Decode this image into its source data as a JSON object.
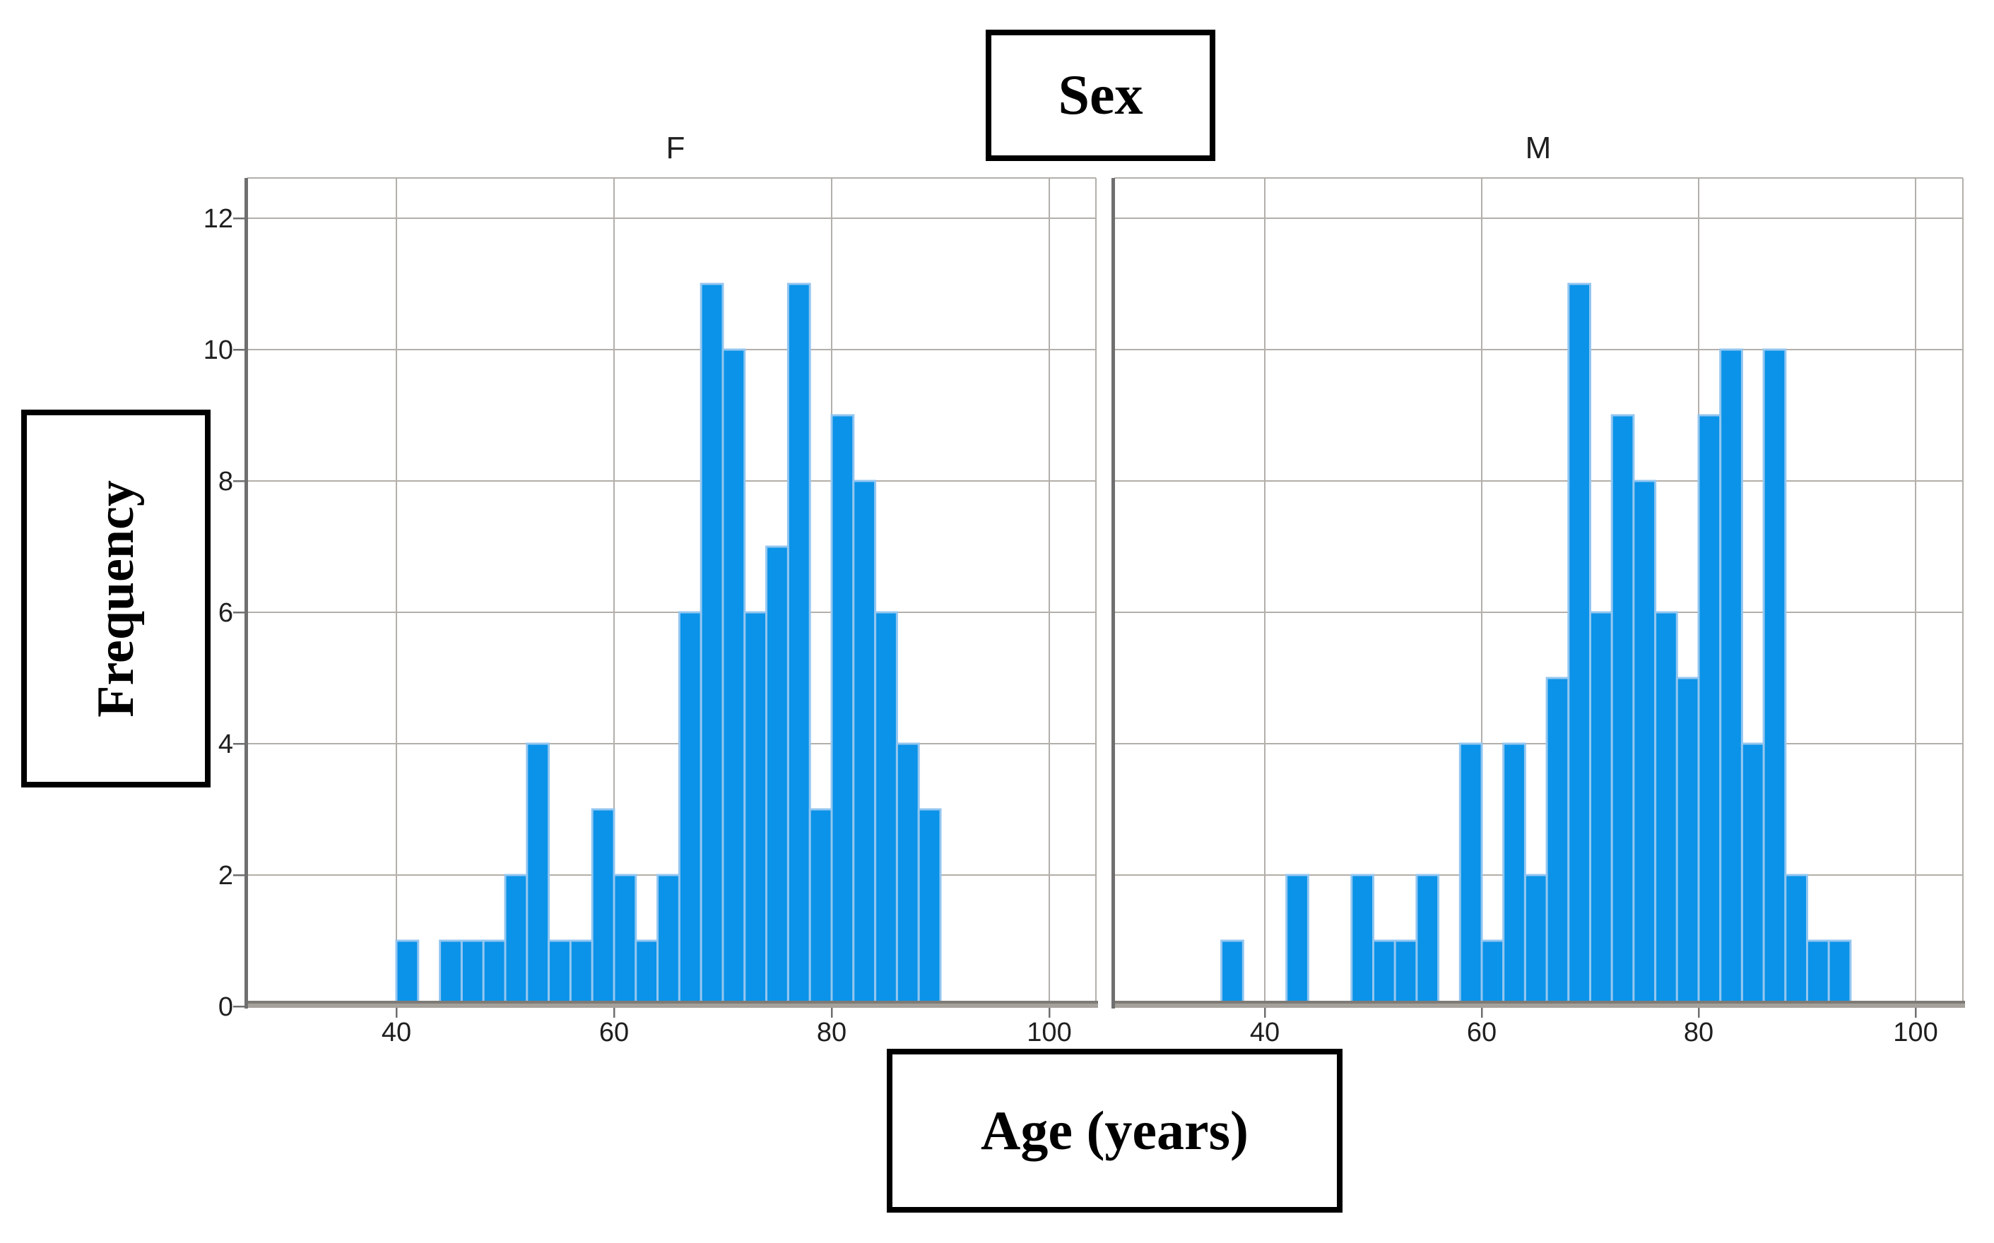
{
  "figure_title": "Sex",
  "chart_data": {
    "type": "bar",
    "subtype": "histogram-faceted",
    "title": "Sex",
    "xlabel": "Age (years)",
    "ylabel": "Frequency",
    "bin_width_years": 2,
    "x_ticks": [
      40,
      60,
      80,
      100
    ],
    "y_ticks": [
      0,
      2,
      4,
      6,
      8,
      10,
      12
    ],
    "ylim": [
      0,
      12.6
    ],
    "xlim_years": [
      26,
      104
    ],
    "grid": true,
    "legend_position": "none",
    "panels": [
      {
        "label": "F",
        "bin_start": 40,
        "counts": [
          1,
          0,
          1,
          1,
          1,
          2,
          4,
          1,
          1,
          3,
          2,
          1,
          2,
          6,
          11,
          10,
          6,
          7,
          11,
          3,
          9,
          8,
          6,
          4,
          3
        ]
      },
      {
        "label": "M",
        "bin_start": 36,
        "counts": [
          1,
          0,
          0,
          2,
          0,
          0,
          2,
          1,
          1,
          2,
          0,
          4,
          1,
          4,
          2,
          5,
          11,
          6,
          9,
          8,
          6,
          5,
          9,
          10,
          4,
          10,
          2,
          1,
          1
        ]
      }
    ],
    "colors": {
      "bar_fill": "#0a93e8",
      "bar_edge": "#93c6f0",
      "gridline": "#b3afaa",
      "axis_line": "#6f6f6f",
      "baseline_dark": "#7e7a75",
      "baseline_light": "#a5a19b",
      "tick_text": "#1f1f1f",
      "box_border": "#000000",
      "background": "#ffffff"
    }
  }
}
